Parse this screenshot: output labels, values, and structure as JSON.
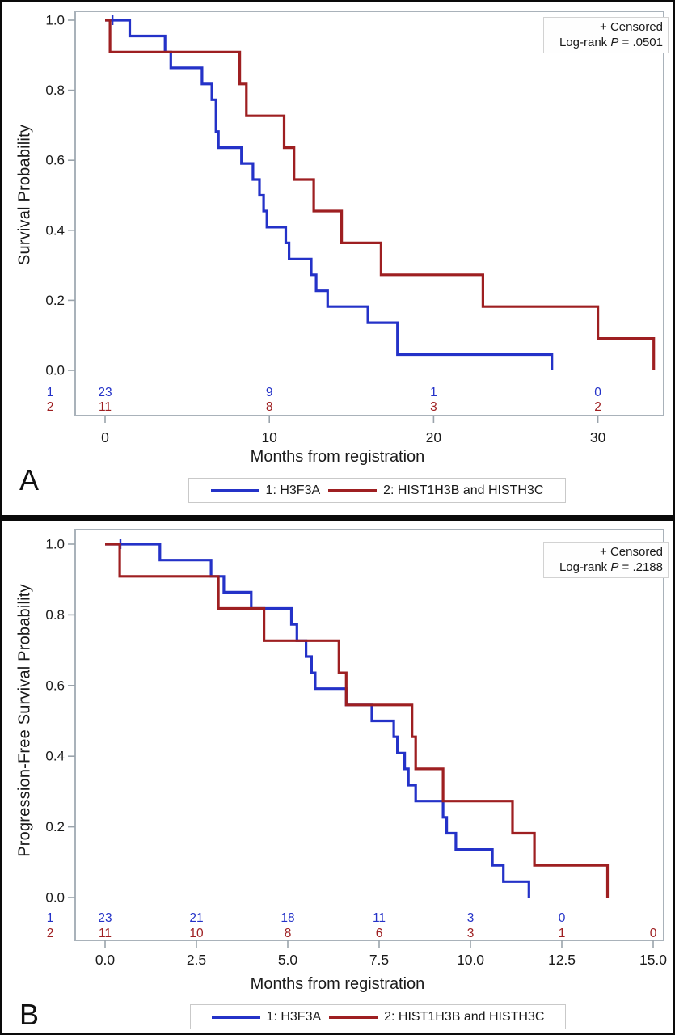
{
  "styles": {
    "frame_color": "#a9b2ba",
    "tick_color": "#9aa3ab",
    "text_color": "#1a1a1a",
    "group1_color": "#2432c8",
    "group2_color": "#9e1f21",
    "inset_border": "#d2d2d2",
    "legend_border": "#c9c9c9"
  },
  "chart_data": [
    {
      "type": "line",
      "subtype": "kaplan-meier-step",
      "panel": "A",
      "ylabel": "Survival Probability",
      "xlabel": "Months from registration",
      "xlim": [
        0,
        34
      ],
      "ylim": [
        0,
        1.0
      ],
      "grid": false,
      "legend_position": "bottom",
      "x_tick_values": [
        0,
        10,
        20,
        30
      ],
      "x_tick_labels": [
        "0",
        "10",
        "20",
        "30"
      ],
      "y_tick_values": [
        1.0,
        0.8,
        0.6,
        0.4,
        0.2,
        0.0
      ],
      "y_tick_labels": [
        "1.0",
        "0.8",
        "0.6",
        "0.4",
        "0.2",
        "0.0"
      ],
      "inset": {
        "censored_label": "+ Censored",
        "logrank_text": "Log-rank ",
        "logrank_p": "P",
        "logrank_eq": " = .0501"
      },
      "series": [
        {
          "key": "group1",
          "label": "1: H3F3A",
          "color": "#2432c8",
          "steps": [
            [
              0,
              1.0
            ],
            [
              1.5,
              0.955
            ],
            [
              3.65,
              0.909
            ],
            [
              4.0,
              0.864
            ],
            [
              5.9,
              0.818
            ],
            [
              6.5,
              0.773
            ],
            [
              6.75,
              0.682
            ],
            [
              6.9,
              0.636
            ],
            [
              8.3,
              0.591
            ],
            [
              9.0,
              0.545
            ],
            [
              9.4,
              0.5
            ],
            [
              9.65,
              0.455
            ],
            [
              9.85,
              0.409
            ],
            [
              11.0,
              0.364
            ],
            [
              11.2,
              0.318
            ],
            [
              12.55,
              0.273
            ],
            [
              12.85,
              0.227
            ],
            [
              13.55,
              0.182
            ],
            [
              16.0,
              0.136
            ],
            [
              17.8,
              0.045
            ],
            [
              27.2,
              0.0
            ]
          ],
          "censors": [
            [
              0.45,
              1.0
            ]
          ]
        },
        {
          "key": "group2",
          "label": "2: HIST1H3B and HISTH3C",
          "color": "#9e1f21",
          "steps": [
            [
              0,
              1.0
            ],
            [
              0.3,
              0.909
            ],
            [
              8.2,
              0.818
            ],
            [
              8.6,
              0.727
            ],
            [
              10.9,
              0.636
            ],
            [
              11.5,
              0.545
            ],
            [
              12.7,
              0.455
            ],
            [
              14.4,
              0.364
            ],
            [
              16.8,
              0.273
            ],
            [
              23.0,
              0.182
            ],
            [
              30.0,
              0.091
            ],
            [
              33.4,
              0.0
            ]
          ],
          "censors": []
        }
      ],
      "at_risk": {
        "row_labels": [
          "1",
          "2"
        ],
        "times": [
          0,
          10,
          20,
          30
        ],
        "rows": [
          [
            "23",
            "9",
            "1",
            "0"
          ],
          [
            "11",
            "8",
            "3",
            "2"
          ]
        ]
      }
    },
    {
      "type": "line",
      "subtype": "kaplan-meier-step",
      "panel": "B",
      "ylabel": "Progression-Free Survival Probability",
      "xlabel": "Months from registration",
      "xlim": [
        0,
        15.3
      ],
      "ylim": [
        0,
        1.0
      ],
      "grid": false,
      "legend_position": "bottom",
      "x_tick_values": [
        0,
        2.5,
        5,
        7.5,
        10,
        12.5,
        15
      ],
      "x_tick_labels": [
        "0.0",
        "2.5",
        "5.0",
        "7.5",
        "10.0",
        "12.5",
        "15.0"
      ],
      "y_tick_values": [
        1.0,
        0.8,
        0.6,
        0.4,
        0.2,
        0.0
      ],
      "y_tick_labels": [
        "1.0",
        "0.8",
        "0.6",
        "0.4",
        "0.2",
        "0.0"
      ],
      "inset": {
        "censored_label": "+ Censored",
        "logrank_text": "Log-rank ",
        "logrank_p": "P",
        "logrank_eq": " = .2188"
      },
      "series": [
        {
          "key": "group1",
          "label": "1: H3F3A",
          "color": "#2432c8",
          "steps": [
            [
              0,
              1.0
            ],
            [
              1.5,
              0.955
            ],
            [
              2.9,
              0.909
            ],
            [
              3.25,
              0.864
            ],
            [
              4.0,
              0.818
            ],
            [
              5.1,
              0.773
            ],
            [
              5.25,
              0.727
            ],
            [
              5.5,
              0.682
            ],
            [
              5.65,
              0.636
            ],
            [
              5.75,
              0.591
            ],
            [
              6.6,
              0.545
            ],
            [
              7.3,
              0.5
            ],
            [
              7.9,
              0.455
            ],
            [
              8.0,
              0.409
            ],
            [
              8.2,
              0.364
            ],
            [
              8.3,
              0.318
            ],
            [
              8.5,
              0.273
            ],
            [
              9.25,
              0.227
            ],
            [
              9.35,
              0.182
            ],
            [
              9.6,
              0.136
            ],
            [
              10.6,
              0.091
            ],
            [
              10.9,
              0.045
            ],
            [
              11.6,
              0.0
            ]
          ],
          "censors": [
            [
              0.42,
              1.0
            ]
          ]
        },
        {
          "key": "group2",
          "label": "2: HIST1H3B and HISTH3C",
          "color": "#9e1f21",
          "steps": [
            [
              0,
              1.0
            ],
            [
              0.4,
              0.909
            ],
            [
              3.1,
              0.818
            ],
            [
              4.35,
              0.727
            ],
            [
              6.4,
              0.636
            ],
            [
              6.6,
              0.545
            ],
            [
              8.4,
              0.455
            ],
            [
              8.5,
              0.364
            ],
            [
              9.25,
              0.273
            ],
            [
              11.15,
              0.182
            ],
            [
              11.75,
              0.091
            ],
            [
              13.75,
              0.0
            ]
          ],
          "censors": []
        }
      ],
      "at_risk": {
        "row_labels": [
          "1",
          "2"
        ],
        "times": [
          0,
          2.5,
          5,
          7.5,
          10,
          12.5,
          15
        ],
        "rows": [
          [
            "23",
            "21",
            "18",
            "11",
            "3",
            "0",
            ""
          ],
          [
            "11",
            "10",
            "8",
            "6",
            "3",
            "1",
            "0"
          ]
        ]
      }
    }
  ]
}
